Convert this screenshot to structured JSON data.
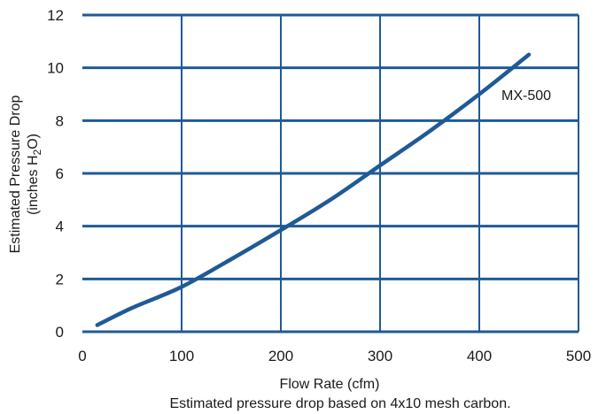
{
  "chart_data": {
    "type": "line",
    "xlabel": "Flow Rate (cfm)",
    "ylabel": "Estimated Pressure Drop",
    "ylabel_line2_prefix": "(inches H",
    "ylabel_line2_sub": "2",
    "ylabel_line2_suffix": "O)",
    "caption": "Estimated pressure drop based on 4x10 mesh carbon.",
    "xlim": [
      0,
      500
    ],
    "ylim": [
      0,
      12
    ],
    "x_ticks": [
      "0",
      "100",
      "200",
      "300",
      "400",
      "500"
    ],
    "y_ticks": [
      "0",
      "2",
      "4",
      "6",
      "8",
      "10",
      "12"
    ],
    "grid": true,
    "line_color": "#1f5a96",
    "series": [
      {
        "name": "MX-500",
        "x": [
          15,
          50,
          100,
          150,
          200,
          250,
          300,
          350,
          400,
          450
        ],
        "y": [
          0.25,
          0.9,
          1.7,
          2.75,
          3.85,
          5.0,
          6.3,
          7.6,
          9.0,
          10.5
        ]
      }
    ]
  }
}
